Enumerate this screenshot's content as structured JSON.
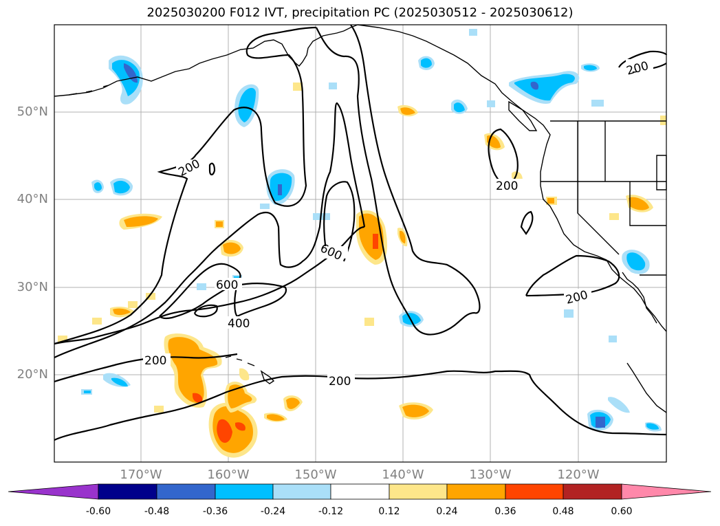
{
  "title": "2025030200 F012 IVT, precipitation PC (2025030512 - 2025030612)",
  "lat_labels": [
    "50°N",
    "40°N",
    "30°N",
    "20°N"
  ],
  "lon_labels": [
    "170°W",
    "160°W",
    "150°W",
    "140°W",
    "130°W",
    "120°W"
  ],
  "contour_labels": [
    "200",
    "200",
    "200",
    "200",
    "200",
    "200",
    "600",
    "600",
    "400"
  ],
  "colorbar": {
    "ticks": [
      "-0.60",
      "-0.48",
      "-0.36",
      "-0.24",
      "-0.12",
      "0.12",
      "0.24",
      "0.36",
      "0.48",
      "0.60"
    ],
    "colors": [
      "#9933cc",
      "#00008b",
      "#3366cc",
      "#00bfff",
      "#aadff8",
      "#ffffff",
      "#fde68a",
      "#ffa500",
      "#ff4500",
      "#b22222",
      "#ff88aa"
    ]
  },
  "colors": {
    "neg_light": "#aadff8",
    "neg_mid": "#00bfff",
    "neg_dark": "#3366cc",
    "neg_darker": "#5533cc",
    "pos_light": "#fde68a",
    "pos_mid": "#ffa500",
    "pos_dark": "#ff4500",
    "grid": "#b0b0b0"
  }
}
